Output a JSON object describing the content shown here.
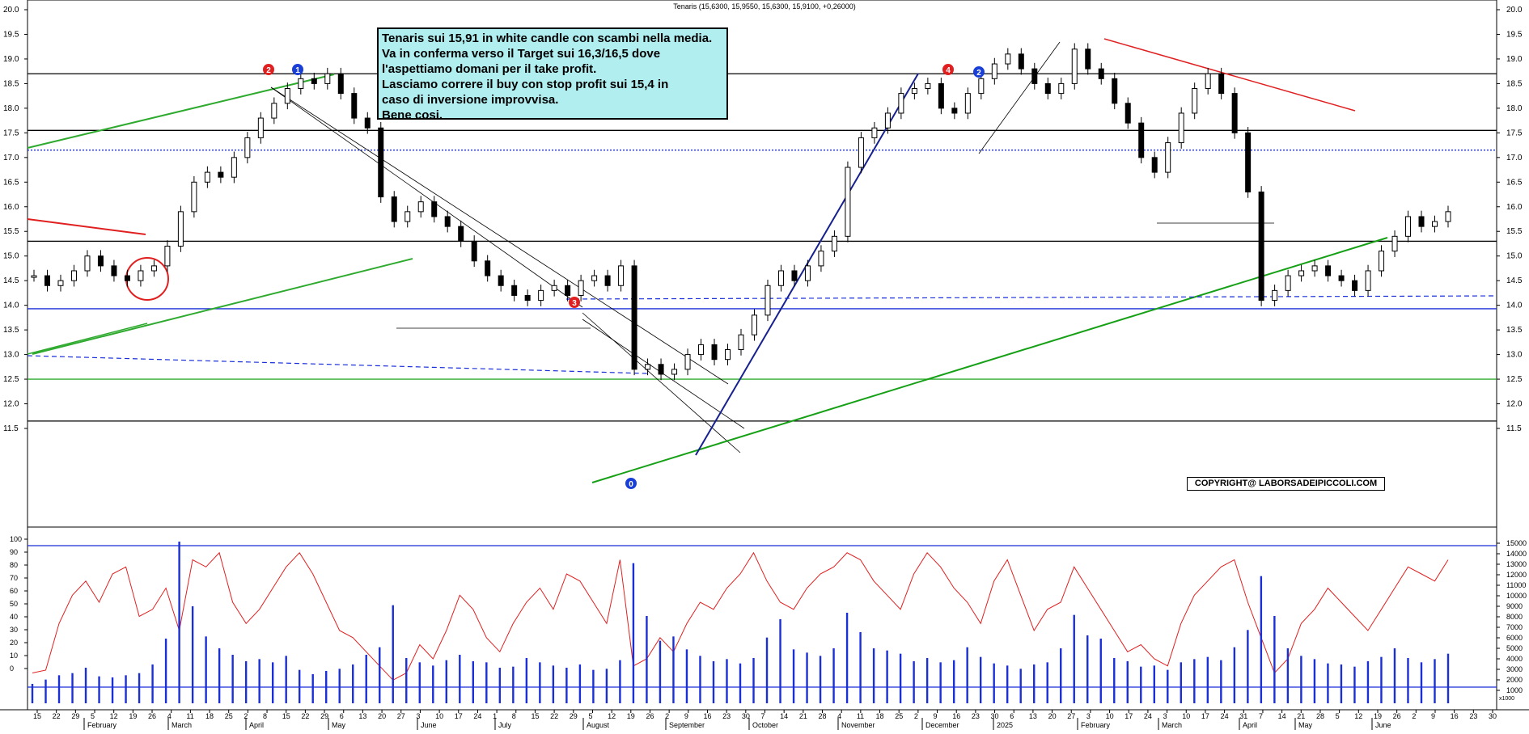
{
  "title": "Tenaris (15,6300, 15,9550, 15,6300, 15,9100, +0,26000)",
  "note": {
    "lines": [
      "Tenaris sui 15,91 in white candle con scambi nella media.",
      "Va in conferma verso il Target sui 16,3/16,5 dove",
      "l'aspettiamo domani per il take profit.",
      "Lasciamo correre il buy con stop profit sui 15,4 in",
      "caso di inversione improvvisa.",
      "Bene cosi."
    ]
  },
  "copyright": "COPYRIGHT@ LABORSADEIPICCOLI.COM",
  "wave_labels": [
    {
      "text": "2",
      "color": "#e02020"
    },
    {
      "text": "1",
      "color": "#1a3fd6"
    },
    {
      "text": "3",
      "color": "#e02020"
    },
    {
      "text": "0",
      "color": "#1a3fd6"
    },
    {
      "text": "4",
      "color": "#e02020"
    },
    {
      "text": "2",
      "color": "#1a3fd6"
    }
  ],
  "chart_data": {
    "type": "candlestick",
    "price_axis": {
      "min": 11.5,
      "max": 20.0,
      "ticks": [
        "20.0",
        "19.5",
        "19.0",
        "18.5",
        "18.0",
        "17.5",
        "17.0",
        "16.5",
        "16.0",
        "15.5",
        "15.0",
        "14.5",
        "14.0",
        "13.5",
        "13.0",
        "12.5",
        "12.0",
        "11.5"
      ]
    },
    "oscillator_axis": {
      "min": 0,
      "max": 100,
      "ticks": [
        "100",
        "90",
        "80",
        "70",
        "60",
        "50",
        "40",
        "30",
        "20",
        "10",
        "0"
      ]
    },
    "volume_axis": {
      "ticks": [
        "15000",
        "14000",
        "13000",
        "12000",
        "11000",
        "10000",
        "9000",
        "8000",
        "7000",
        "6000",
        "5000",
        "4000",
        "3000",
        "2000",
        "1000"
      ],
      "unit": "x1000"
    },
    "day_ticks": [
      "15",
      "22",
      "29",
      "5",
      "12",
      "19",
      "26",
      "4",
      "11",
      "18",
      "25",
      "2",
      "8",
      "15",
      "22",
      "29",
      "6",
      "13",
      "20",
      "27",
      "3",
      "10",
      "17",
      "24",
      "1",
      "8",
      "15",
      "22",
      "29",
      "5",
      "12",
      "19",
      "26",
      "2",
      "9",
      "16",
      "23",
      "30",
      "7",
      "14",
      "21",
      "28",
      "4",
      "11",
      "18",
      "25",
      "2",
      "9",
      "16",
      "23",
      "30",
      "6",
      "13",
      "20",
      "27",
      "3",
      "10",
      "17",
      "24",
      "3",
      "10",
      "17",
      "24",
      "31",
      "7",
      "14",
      "21",
      "28",
      "5",
      "12",
      "19",
      "26",
      "2",
      "9",
      "16",
      "23",
      "30"
    ],
    "month_labels": [
      "February",
      "March",
      "April",
      "May",
      "June",
      "July",
      "August",
      "September",
      "October",
      "November",
      "December",
      "2025",
      "February",
      "March",
      "April",
      "May",
      "June"
    ],
    "horizontal_levels": [
      {
        "value": 18.7,
        "color": "#000000",
        "style": "solid"
      },
      {
        "value": 17.55,
        "color": "#000000",
        "style": "solid"
      },
      {
        "value": 17.15,
        "color": "#1a2fd6",
        "style": "dotted"
      },
      {
        "value": 15.3,
        "color": "#000000",
        "style": "solid"
      },
      {
        "value": 13.93,
        "color": "#1a2fd6",
        "style": "solid"
      },
      {
        "value": 12.5,
        "color": "#2eaa2e",
        "style": "solid"
      },
      {
        "value": 11.65,
        "color": "#000000",
        "style": "solid"
      }
    ],
    "closes": [
      14.6,
      14.4,
      14.5,
      14.7,
      15.0,
      14.8,
      14.6,
      14.5,
      14.7,
      14.8,
      15.2,
      15.9,
      16.5,
      16.7,
      16.6,
      17.0,
      17.4,
      17.8,
      18.1,
      18.4,
      18.6,
      18.5,
      18.7,
      18.3,
      17.8,
      17.6,
      16.2,
      15.7,
      15.9,
      16.1,
      15.8,
      15.6,
      15.3,
      14.9,
      14.6,
      14.4,
      14.2,
      14.1,
      14.3,
      14.4,
      14.2,
      14.5,
      14.6,
      14.4,
      14.8,
      12.7,
      12.8,
      12.6,
      12.7,
      13.0,
      13.2,
      12.9,
      13.1,
      13.4,
      13.8,
      14.4,
      14.7,
      14.5,
      14.8,
      15.1,
      15.4,
      16.8,
      17.4,
      17.6,
      17.9,
      18.3,
      18.4,
      18.5,
      18.0,
      17.9,
      18.3,
      18.6,
      18.9,
      19.1,
      18.8,
      18.5,
      18.3,
      18.5,
      19.2,
      18.8,
      18.6,
      18.1,
      17.7,
      17.0,
      16.7,
      17.3,
      17.9,
      18.4,
      18.7,
      18.3,
      17.5,
      16.3,
      14.1,
      14.3,
      14.6,
      14.7,
      14.8,
      14.6,
      14.5,
      14.3,
      14.7,
      15.1,
      15.4,
      15.8,
      15.6,
      15.7,
      15.9
    ],
    "oscillator": [
      10,
      12,
      45,
      65,
      75,
      60,
      80,
      85,
      50,
      55,
      70,
      40,
      90,
      85,
      95,
      60,
      45,
      55,
      70,
      85,
      95,
      80,
      60,
      40,
      35,
      25,
      15,
      5,
      10,
      30,
      20,
      40,
      65,
      55,
      35,
      25,
      45,
      60,
      70,
      55,
      80,
      75,
      60,
      45,
      90,
      15,
      20,
      35,
      25,
      45,
      60,
      55,
      70,
      80,
      95,
      75,
      60,
      55,
      70,
      80,
      85,
      95,
      90,
      75,
      65,
      55,
      80,
      95,
      85,
      70,
      60,
      45,
      75,
      90,
      65,
      40,
      55,
      60,
      85,
      70,
      55,
      40,
      25,
      30,
      20,
      15,
      45,
      65,
      75,
      85,
      90,
      60,
      35,
      10,
      20,
      45,
      55,
      70,
      60,
      50,
      40,
      55,
      70,
      85,
      80,
      75,
      90
    ],
    "volume": [
      1800,
      2200,
      2600,
      2800,
      3300,
      2500,
      2400,
      2600,
      2800,
      3600,
      6000,
      15000,
      9000,
      6200,
      5100,
      4500,
      3900,
      4100,
      3800,
      4400,
      3100,
      2700,
      3000,
      3200,
      3600,
      4500,
      5200,
      9100,
      4200,
      3800,
      3500,
      4000,
      4500,
      3900,
      3800,
      3300,
      3400,
      4200,
      3800,
      3500,
      3300,
      3600,
      3100,
      3200,
      4000,
      13000,
      8100,
      5800,
      6200,
      5000,
      4400,
      3900,
      4100,
      3700,
      4200,
      6100,
      7800,
      5000,
      4700,
      4400,
      5100,
      8400,
      6600,
      5100,
      4900,
      4600,
      3900,
      4200,
      3800,
      4000,
      5200,
      4300,
      3700,
      3500,
      3200,
      3600,
      3800,
      5100,
      8200,
      6300,
      6000,
      4200,
      3900,
      3400,
      3500,
      3100,
      3800,
      4100,
      4300,
      4000,
      5200,
      6800,
      11800,
      8100,
      5100,
      4400,
      4100,
      3700,
      3600,
      3400,
      3900,
      4300,
      5100,
      4200,
      3800,
      4100,
      4600
    ]
  }
}
